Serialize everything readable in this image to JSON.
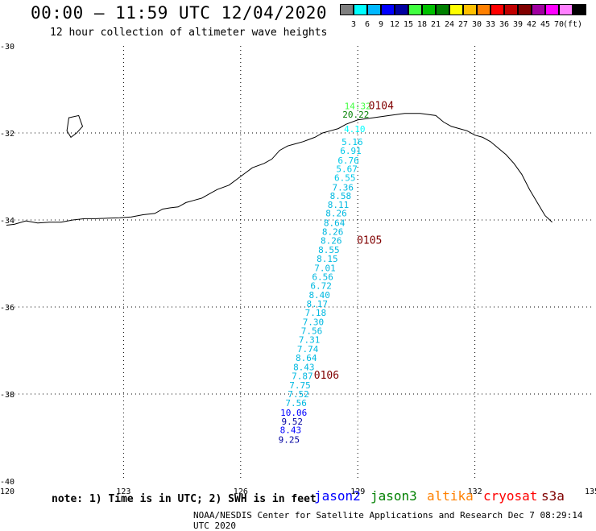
{
  "header": {
    "title": "00:00 – 11:59 UTC 12/04/2020",
    "subtitle": "12 hour collection of altimeter wave heights"
  },
  "color_scale": {
    "swatches": [
      "#7f7f7f",
      "#00ffff",
      "#00b8ff",
      "#0000ff",
      "#0000a0",
      "#40ff40",
      "#00c000",
      "#008000",
      "#ffff00",
      "#ffc000",
      "#ff8000",
      "#ff0000",
      "#c00000",
      "#800000",
      "#a000a0",
      "#ff00ff",
      "#ff80ff",
      "#000000"
    ],
    "labels": [
      "3",
      "6",
      "9",
      "12",
      "15",
      "18",
      "21",
      "24",
      "27",
      "30",
      "33",
      "36",
      "39",
      "42",
      "45",
      "70",
      "(ft)"
    ]
  },
  "map": {
    "x_ticks": [
      "120",
      "123",
      "126",
      "129",
      "132",
      "135"
    ],
    "y_ticks": [
      "-30",
      "-32",
      "-34",
      "-36",
      "-38",
      "-40"
    ],
    "coastline_x": [
      133.98,
      133.8,
      133.6,
      133.4,
      133.2,
      133.0,
      132.8,
      132.6,
      132.4,
      132.2,
      132.0,
      131.8,
      131.6,
      131.4,
      131.2,
      131.0,
      130.6,
      130.2,
      129.8,
      129.4,
      129.0,
      128.7,
      128.5,
      128.3,
      128.1,
      127.9,
      127.6,
      127.4,
      127.2,
      127.0,
      126.8,
      126.6,
      126.3,
      126.0,
      125.7,
      125.4,
      125.2,
      125.0,
      124.8,
      124.6,
      124.4,
      124.2,
      124.0,
      123.8,
      123.5,
      123.2,
      122.9,
      122.6,
      122.3,
      122.0,
      121.7,
      121.4,
      121.1,
      120.8,
      120.5,
      120.2,
      120.0
    ],
    "coastline_y": [
      -34.05,
      -33.9,
      -33.6,
      -33.3,
      -32.95,
      -32.7,
      -32.5,
      -32.35,
      -32.2,
      -32.1,
      -32.05,
      -31.95,
      -31.9,
      -31.85,
      -31.75,
      -31.6,
      -31.55,
      -31.55,
      -31.6,
      -31.65,
      -31.7,
      -31.8,
      -31.9,
      -31.95,
      -32.0,
      -32.1,
      -32.2,
      -32.25,
      -32.3,
      -32.4,
      -32.6,
      -32.7,
      -32.8,
      -33.0,
      -33.2,
      -33.3,
      -33.4,
      -33.5,
      -33.55,
      -33.6,
      -33.7,
      -33.72,
      -33.75,
      -33.85,
      -33.88,
      -33.93,
      -33.95,
      -33.96,
      -33.97,
      -33.97,
      -34.0,
      -34.05,
      -34.05,
      -34.07,
      -34.02,
      -34.1,
      -34.12
    ],
    "island_x": [
      121.6,
      121.85,
      121.95,
      121.8,
      121.65,
      121.55
    ],
    "island_y": [
      -31.65,
      -31.6,
      -31.85,
      -32.0,
      -32.1,
      -31.95
    ],
    "observations": [
      {
        "label": "14:32",
        "lon": 129.0,
        "lat": -31.45,
        "color": "#40ff40"
      },
      {
        "label": "20.22",
        "lon": 128.95,
        "lat": -31.65,
        "color": "#008000"
      },
      {
        "label": "4.10",
        "lon": 128.92,
        "lat": -31.98,
        "color": "#00ffff"
      },
      {
        "label": "5.16",
        "lon": 128.86,
        "lat": -32.28,
        "color": "#00c8e8"
      },
      {
        "label": "6.91",
        "lon": 128.82,
        "lat": -32.48,
        "color": "#00c8e8"
      },
      {
        "label": "6.76",
        "lon": 128.76,
        "lat": -32.7,
        "color": "#00c8e8"
      },
      {
        "label": "5.67",
        "lon": 128.72,
        "lat": -32.9,
        "color": "#00c8e8"
      },
      {
        "label": "6.55",
        "lon": 128.67,
        "lat": -33.1,
        "color": "#00c8e8"
      },
      {
        "label": "7.36",
        "lon": 128.62,
        "lat": -33.32,
        "color": "#00b8e0"
      },
      {
        "label": "8.58",
        "lon": 128.56,
        "lat": -33.52,
        "color": "#00b8e0"
      },
      {
        "label": "8.11",
        "lon": 128.5,
        "lat": -33.72,
        "color": "#00b8e0"
      },
      {
        "label": "8.26",
        "lon": 128.45,
        "lat": -33.92,
        "color": "#00b8e0"
      },
      {
        "label": "8.64",
        "lon": 128.4,
        "lat": -34.14,
        "color": "#00b8e0"
      },
      {
        "label": "8.26",
        "lon": 128.36,
        "lat": -34.34,
        "color": "#00b8e0"
      },
      {
        "label": "8.26",
        "lon": 128.32,
        "lat": -34.55,
        "color": "#00b8e0"
      },
      {
        "label": "8.55",
        "lon": 128.26,
        "lat": -34.76,
        "color": "#00b8e0"
      },
      {
        "label": "8.15",
        "lon": 128.22,
        "lat": -34.96,
        "color": "#00b8e0"
      },
      {
        "label": "7.01",
        "lon": 128.16,
        "lat": -35.18,
        "color": "#00b8e0"
      },
      {
        "label": "6.56",
        "lon": 128.1,
        "lat": -35.38,
        "color": "#00b8e0"
      },
      {
        "label": "6.72",
        "lon": 128.06,
        "lat": -35.58,
        "color": "#00b8e0"
      },
      {
        "label": "8.40",
        "lon": 128.02,
        "lat": -35.8,
        "color": "#00b8e0"
      },
      {
        "label": "8.17",
        "lon": 127.96,
        "lat": -36.0,
        "color": "#00b8e0"
      },
      {
        "label": "7.18",
        "lon": 127.92,
        "lat": -36.2,
        "color": "#00b8e0"
      },
      {
        "label": "7.30",
        "lon": 127.86,
        "lat": -36.42,
        "color": "#00b8e0"
      },
      {
        "label": "7.56",
        "lon": 127.82,
        "lat": -36.62,
        "color": "#00b8e0"
      },
      {
        "label": "7.31",
        "lon": 127.76,
        "lat": -36.82,
        "color": "#00b8e0"
      },
      {
        "label": "7.74",
        "lon": 127.72,
        "lat": -37.04,
        "color": "#00b8e0"
      },
      {
        "label": "8.64",
        "lon": 127.68,
        "lat": -37.24,
        "color": "#00b8e0"
      },
      {
        "label": "8.43",
        "lon": 127.62,
        "lat": -37.45,
        "color": "#00b8e0"
      },
      {
        "label": "7.87",
        "lon": 127.58,
        "lat": -37.66,
        "color": "#00b8e0"
      },
      {
        "label": "7.75",
        "lon": 127.52,
        "lat": -37.87,
        "color": "#00b8e0"
      },
      {
        "label": "7.52",
        "lon": 127.48,
        "lat": -38.07,
        "color": "#00b8e0"
      },
      {
        "label": "7.56",
        "lon": 127.42,
        "lat": -38.28,
        "color": "#00b8e0"
      },
      {
        "label": "10.06",
        "lon": 127.36,
        "lat": -38.5,
        "color": "#0000ff"
      },
      {
        "label": "9.52",
        "lon": 127.32,
        "lat": -38.7,
        "color": "#0000a0"
      },
      {
        "label": "8.43",
        "lon": 127.28,
        "lat": -38.9,
        "color": "#0000ff"
      },
      {
        "label": "9.25",
        "lon": 127.24,
        "lat": -39.12,
        "color": "#0000a0"
      }
    ],
    "passes": [
      {
        "label": "0104",
        "lon": 129.6,
        "lat": -31.45
      },
      {
        "label": "0105",
        "lon": 129.3,
        "lat": -34.55
      },
      {
        "label": "0106",
        "lon": 128.2,
        "lat": -37.65
      }
    ],
    "pass_color": "#800000"
  },
  "legend": {
    "note": "note:  1) Time is in UTC; 2) SWH is in feet",
    "satellites": [
      {
        "name": "jason2",
        "color": "#0000ff"
      },
      {
        "name": "jason3",
        "color": "#008000"
      },
      {
        "name": "altika",
        "color": "#ff8000"
      },
      {
        "name": "cryosat",
        "color": "#ff0000"
      },
      {
        "name": "s3a",
        "color": "#800000"
      }
    ]
  },
  "footer": "NOAA/NESDIS Center for Satellite Applications and Research   Dec  7 08:29:14 UTC 2020"
}
